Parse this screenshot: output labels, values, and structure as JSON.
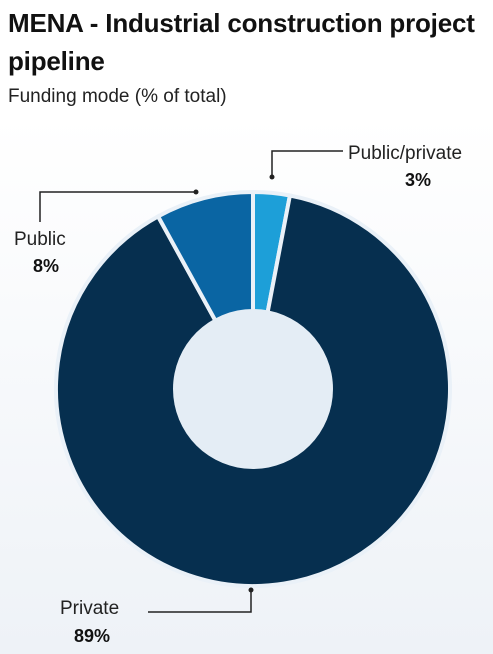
{
  "header": {
    "title": "MENA - Industrial construction project pipeline",
    "subtitle": "Funding mode (% of total)"
  },
  "colors": {
    "private": "#062f4f",
    "public": "#0a65a3",
    "public_private": "#1d9fd8",
    "hole": "#e4edf5",
    "leader_line": "#222222",
    "slice_border": "#eaf1f8"
  },
  "chart_data": {
    "type": "pie",
    "donut": true,
    "title": "MENA - Industrial construction project pipeline",
    "subtitle": "Funding mode (% of total)",
    "unit": "%",
    "slices": [
      {
        "label": "Public/private",
        "value": 3,
        "value_label": "3%",
        "color": "#1d9fd8"
      },
      {
        "label": "Private",
        "value": 89,
        "value_label": "89%",
        "color": "#062f4f"
      },
      {
        "label": "Public",
        "value": 8,
        "value_label": "8%",
        "color": "#0a65a3"
      }
    ]
  }
}
